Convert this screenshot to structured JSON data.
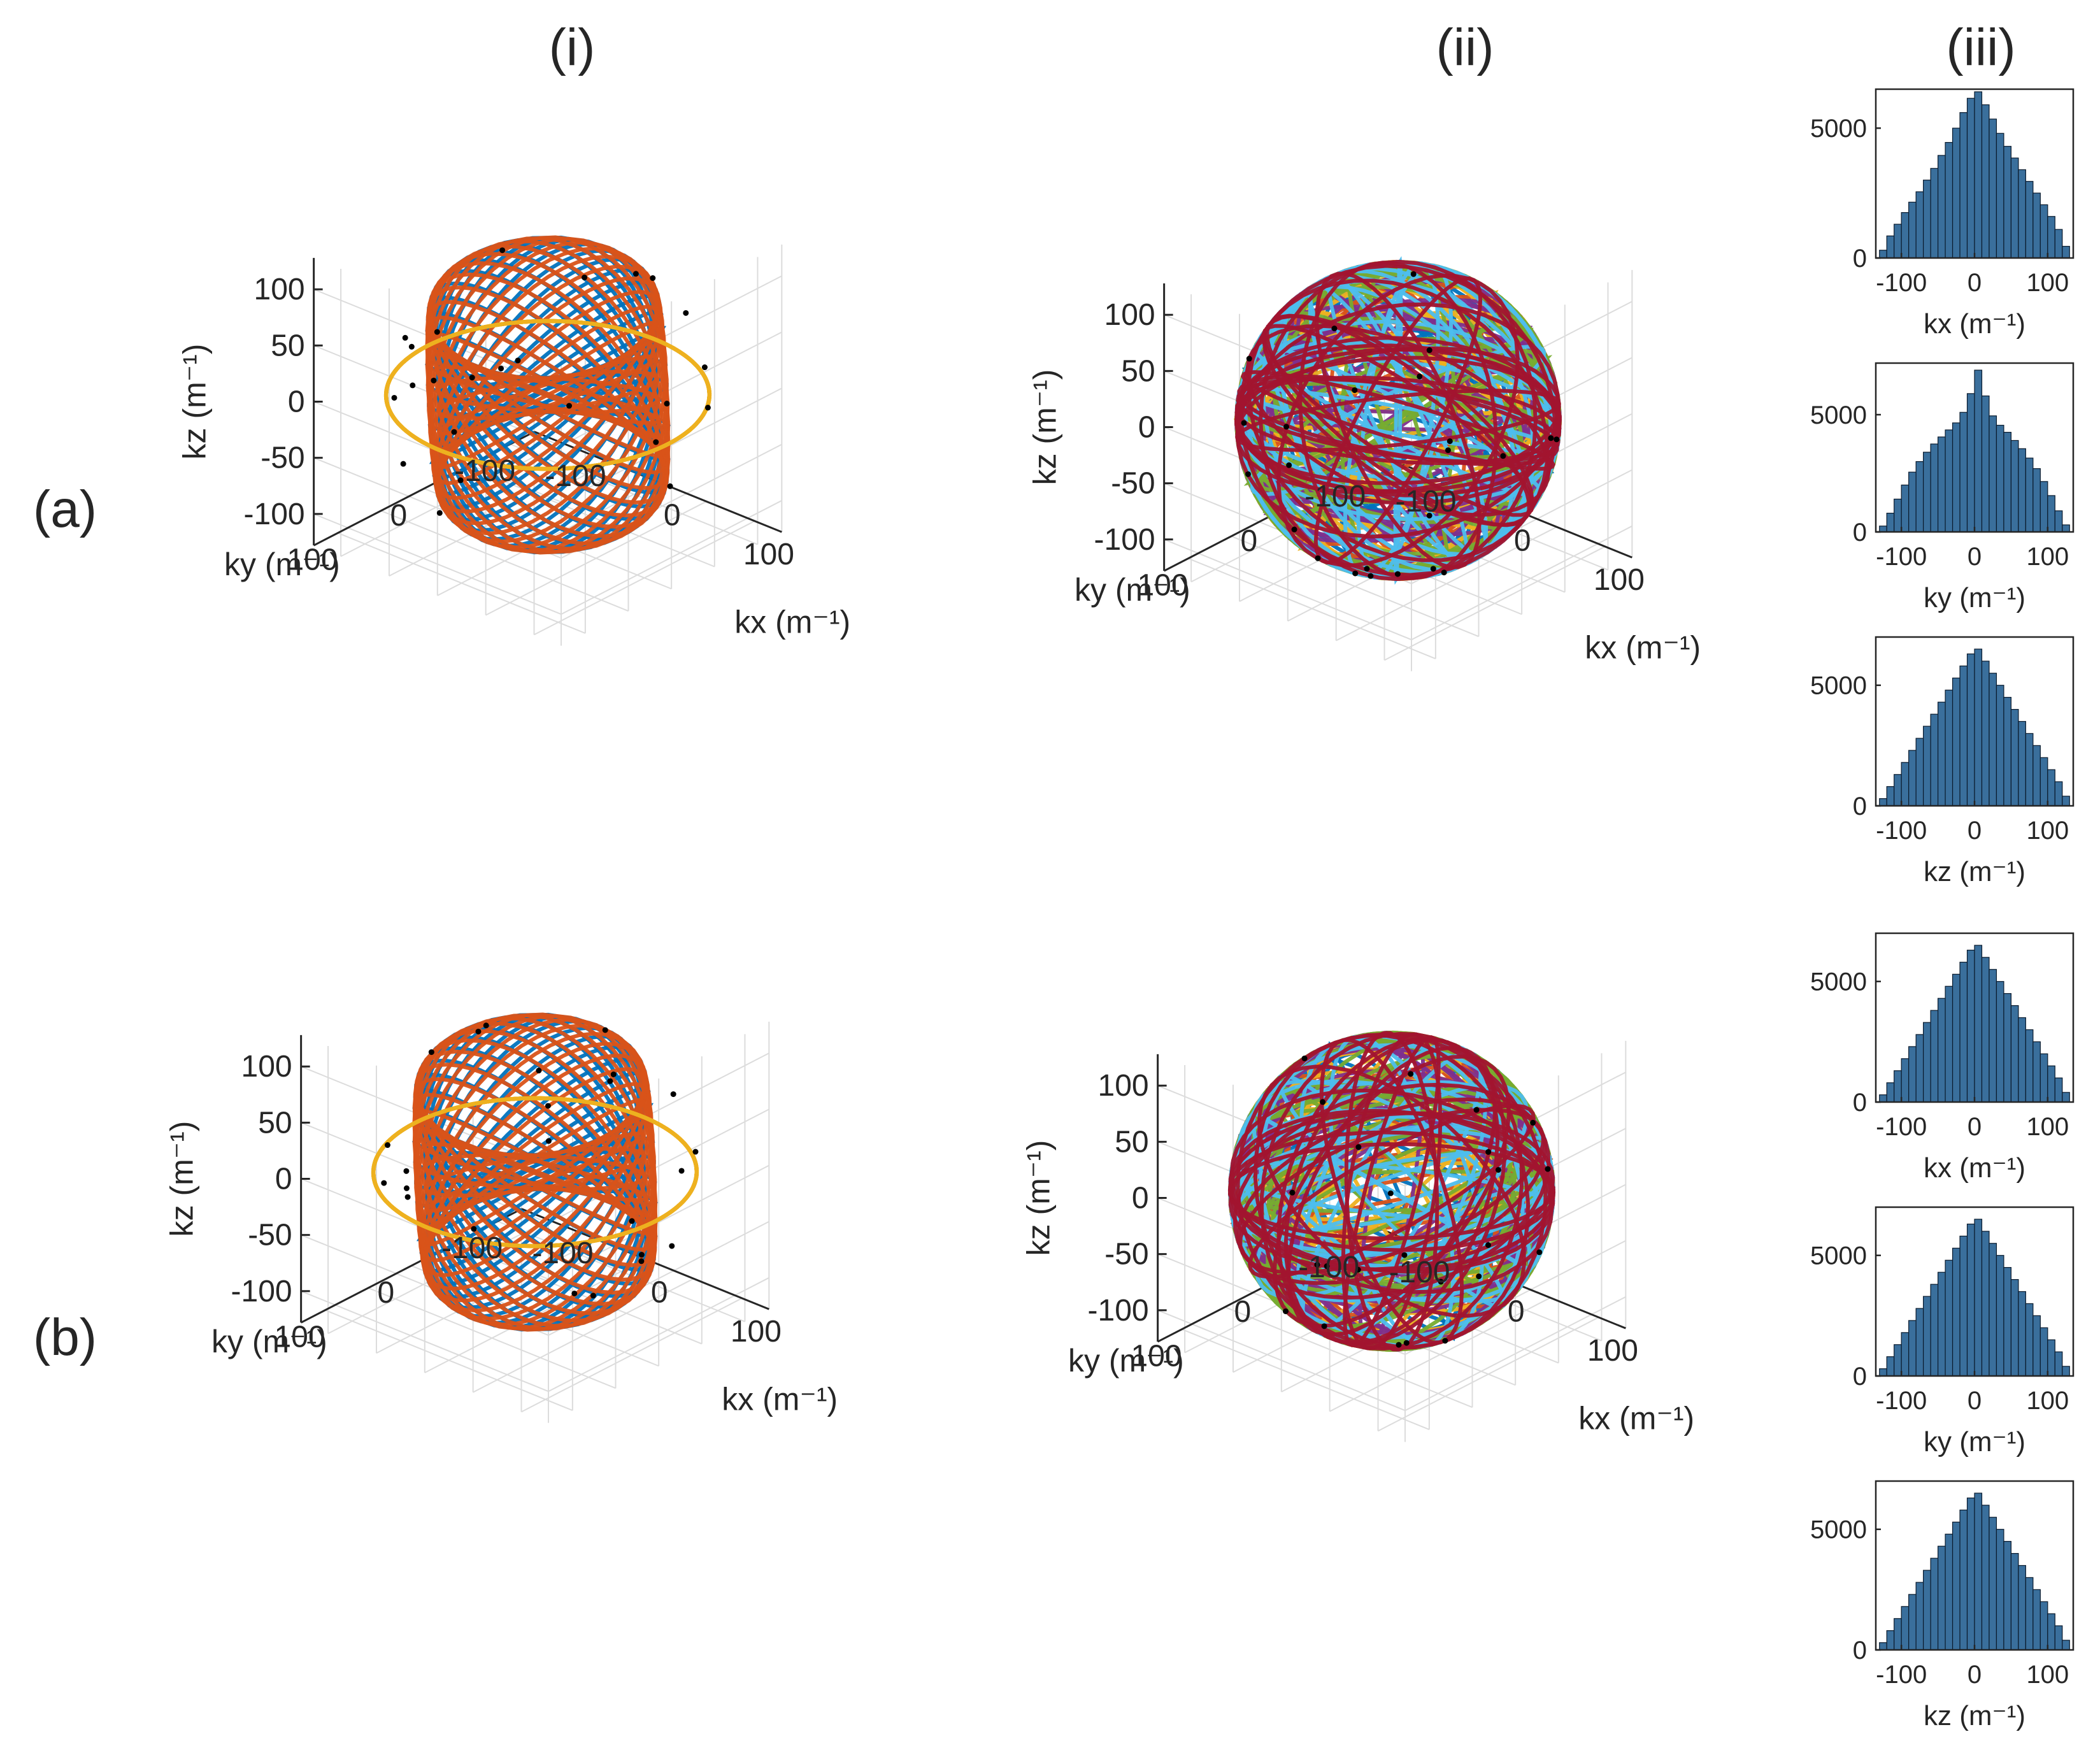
{
  "column_labels": [
    "(i)",
    "(ii)",
    "(iii)"
  ],
  "row_labels": [
    "(a)",
    "(b)"
  ],
  "colors": {
    "axis": "#262626",
    "grid": "#dcdcdc",
    "bar": "#3a6f9c",
    "bar_edge": "#0a1a2c",
    "trajectory": [
      "#0072BD",
      "#D95319",
      "#EDB120",
      "#7E2F8E",
      "#77AC30",
      "#4DBEEE",
      "#A2142F"
    ],
    "marker": "#000000"
  },
  "chart_data": [
    {
      "id": "a-i",
      "type": "scatter3d",
      "xlabel": "kx (m⁻¹)",
      "ylabel": "ky (m⁻¹)",
      "zlabel": "kz (m⁻¹)",
      "xticks": [
        -100,
        0,
        100
      ],
      "yticks": [
        -100,
        0,
        100
      ],
      "zticks": [
        -100,
        -50,
        0,
        50,
        100
      ],
      "xlim": [
        -128,
        128
      ],
      "ylim": [
        -128,
        128
      ],
      "zlim": [
        -128,
        128
      ],
      "radius": 125,
      "series_count": 3,
      "grid": true
    },
    {
      "id": "a-ii",
      "type": "scatter3d",
      "xlabel": "kx (m⁻¹)",
      "ylabel": "ky (m⁻¹)",
      "zlabel": "kz (m⁻¹)",
      "xticks": [
        -100,
        0,
        100
      ],
      "yticks": [
        -100,
        0,
        100
      ],
      "zticks": [
        -100,
        -50,
        0,
        50,
        100
      ],
      "xlim": [
        -128,
        128
      ],
      "ylim": [
        -128,
        128
      ],
      "zlim": [
        -128,
        128
      ],
      "radius": 125,
      "series_count": 7,
      "grid": true
    },
    {
      "id": "b-i",
      "type": "scatter3d",
      "xlabel": "kx (m⁻¹)",
      "ylabel": "ky (m⁻¹)",
      "zlabel": "kz (m⁻¹)",
      "xticks": [
        -100,
        0,
        100
      ],
      "yticks": [
        -100,
        0,
        100
      ],
      "zticks": [
        -100,
        -50,
        0,
        50,
        100
      ],
      "xlim": [
        -128,
        128
      ],
      "ylim": [
        -128,
        128
      ],
      "zlim": [
        -128,
        128
      ],
      "radius": 125,
      "series_count": 3,
      "grid": true
    },
    {
      "id": "b-ii",
      "type": "scatter3d",
      "xlabel": "kx (m⁻¹)",
      "ylabel": "ky (m⁻¹)",
      "zlabel": "kz (m⁻¹)",
      "xticks": [
        -100,
        0,
        100
      ],
      "yticks": [
        -100,
        0,
        100
      ],
      "zticks": [
        -100,
        -50,
        0,
        50,
        100
      ],
      "xlim": [
        -128,
        128
      ],
      "ylim": [
        -128,
        128
      ],
      "zlim": [
        -128,
        128
      ],
      "radius": 125,
      "series_count": 7,
      "grid": true
    },
    {
      "id": "a-iii-kx",
      "type": "bar",
      "xlabel": "kx (m⁻¹)",
      "xlim": [
        -135,
        135
      ],
      "ylim": [
        0,
        6500
      ],
      "xticks": [
        -100,
        0,
        100
      ],
      "yticks": [
        0,
        5000
      ],
      "bin_centers": [
        -125,
        -115,
        -105,
        -95,
        -85,
        -75,
        -65,
        -55,
        -45,
        -35,
        -25,
        -15,
        -5,
        5,
        15,
        25,
        35,
        45,
        55,
        65,
        75,
        85,
        95,
        105,
        115,
        125
      ],
      "values": [
        300,
        850,
        1300,
        1750,
        2150,
        2550,
        3000,
        3450,
        3950,
        4450,
        5000,
        5600,
        6150,
        6400,
        5900,
        5350,
        4800,
        4300,
        3850,
        3400,
        2950,
        2500,
        2050,
        1600,
        1100,
        450
      ]
    },
    {
      "id": "a-iii-ky",
      "type": "bar",
      "xlabel": "ky (m⁻¹)",
      "xlim": [
        -135,
        135
      ],
      "ylim": [
        0,
        7200
      ],
      "xticks": [
        -100,
        0,
        100
      ],
      "yticks": [
        0,
        5000
      ],
      "bin_centers": [
        -125,
        -115,
        -105,
        -95,
        -85,
        -75,
        -65,
        -55,
        -45,
        -35,
        -25,
        -15,
        -5,
        5,
        15,
        25,
        35,
        45,
        55,
        65,
        75,
        85,
        95,
        105,
        115,
        125
      ],
      "values": [
        250,
        800,
        1400,
        2000,
        2550,
        3000,
        3400,
        3750,
        4050,
        4350,
        4650,
        5100,
        5900,
        6900,
        5800,
        4950,
        4550,
        4250,
        3900,
        3550,
        3150,
        2700,
        2150,
        1550,
        900,
        300
      ]
    },
    {
      "id": "a-iii-kz",
      "type": "bar",
      "xlabel": "kz (m⁻¹)",
      "xlim": [
        -135,
        135
      ],
      "ylim": [
        0,
        7000
      ],
      "xticks": [
        -100,
        0,
        100
      ],
      "yticks": [
        0,
        5000
      ],
      "bin_centers": [
        -125,
        -115,
        -105,
        -95,
        -85,
        -75,
        -65,
        -55,
        -45,
        -35,
        -25,
        -15,
        -5,
        5,
        15,
        25,
        35,
        45,
        55,
        65,
        75,
        85,
        95,
        105,
        115,
        125
      ],
      "values": [
        300,
        800,
        1300,
        1800,
        2300,
        2800,
        3300,
        3800,
        4300,
        4800,
        5300,
        5800,
        6300,
        6500,
        6000,
        5500,
        5000,
        4500,
        4000,
        3500,
        3000,
        2500,
        2000,
        1500,
        1000,
        400
      ]
    },
    {
      "id": "b-iii-kx",
      "type": "bar",
      "xlabel": "kx (m⁻¹)",
      "xlim": [
        -135,
        135
      ],
      "ylim": [
        0,
        7000
      ],
      "xticks": [
        -100,
        0,
        100
      ],
      "yticks": [
        0,
        5000
      ],
      "bin_centers": [
        -125,
        -115,
        -105,
        -95,
        -85,
        -75,
        -65,
        -55,
        -45,
        -35,
        -25,
        -15,
        -5,
        5,
        15,
        25,
        35,
        45,
        55,
        65,
        75,
        85,
        95,
        105,
        115,
        125
      ],
      "values": [
        300,
        800,
        1300,
        1800,
        2300,
        2800,
        3300,
        3800,
        4300,
        4800,
        5300,
        5800,
        6300,
        6500,
        6000,
        5500,
        5000,
        4500,
        4000,
        3500,
        3000,
        2500,
        2000,
        1500,
        1000,
        400
      ]
    },
    {
      "id": "b-iii-ky",
      "type": "bar",
      "xlabel": "ky (m⁻¹)",
      "xlim": [
        -135,
        135
      ],
      "ylim": [
        0,
        7000
      ],
      "xticks": [
        -100,
        0,
        100
      ],
      "yticks": [
        0,
        5000
      ],
      "bin_centers": [
        -125,
        -115,
        -105,
        -95,
        -85,
        -75,
        -65,
        -55,
        -45,
        -35,
        -25,
        -15,
        -5,
        5,
        15,
        25,
        35,
        45,
        55,
        65,
        75,
        85,
        95,
        105,
        115,
        125
      ],
      "values": [
        300,
        800,
        1300,
        1800,
        2300,
        2800,
        3300,
        3800,
        4300,
        4800,
        5300,
        5800,
        6300,
        6500,
        6000,
        5500,
        5000,
        4500,
        4000,
        3500,
        3000,
        2500,
        2000,
        1500,
        1000,
        400
      ]
    },
    {
      "id": "b-iii-kz",
      "type": "bar",
      "xlabel": "kz (m⁻¹)",
      "xlim": [
        -135,
        135
      ],
      "ylim": [
        0,
        7000
      ],
      "xticks": [
        -100,
        0,
        100
      ],
      "yticks": [
        0,
        5000
      ],
      "bin_centers": [
        -125,
        -115,
        -105,
        -95,
        -85,
        -75,
        -65,
        -55,
        -45,
        -35,
        -25,
        -15,
        -5,
        5,
        15,
        25,
        35,
        45,
        55,
        65,
        75,
        85,
        95,
        105,
        115,
        125
      ],
      "values": [
        300,
        800,
        1300,
        1800,
        2300,
        2800,
        3300,
        3800,
        4300,
        4800,
        5300,
        5800,
        6300,
        6500,
        6000,
        5500,
        5000,
        4500,
        4000,
        3500,
        3000,
        2500,
        2000,
        1500,
        1000,
        400
      ]
    }
  ]
}
